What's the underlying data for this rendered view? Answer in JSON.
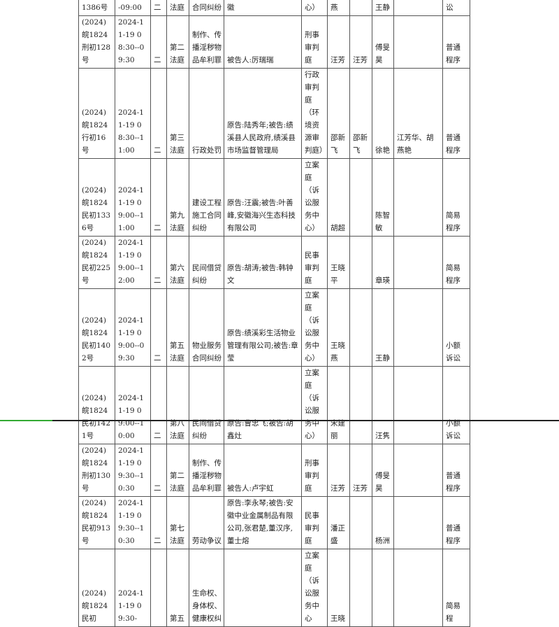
{
  "rows": [
    {
      "case": "1386号",
      "time": "-09:00",
      "day": "二",
      "room": "法庭",
      "cause": "合同纠纷",
      "parties": "工程有限公司;被告:周徽",
      "dept": "心）",
      "judge": "燕",
      "judge2": "",
      "clerk": "王静",
      "jurors": "",
      "procedure": "讼"
    },
    {
      "case": "(2024)皖1824刑初128号",
      "time": "2024-11-19 08:30--09:30",
      "day": "二",
      "room": "第二法庭",
      "cause": "制作、传播淫秽物品牟利罪",
      "parties": "被告人:厉瑞瑞",
      "dept": "刑事审判庭",
      "judge": "汪芳",
      "judge2": "汪芳",
      "clerk": "傅旻昊",
      "jurors": "",
      "procedure": "普通程序"
    },
    {
      "case": "(2024)皖1824行初16号",
      "time": "2024-11-19 08:30--11:00",
      "day": "二",
      "room": "第三法庭",
      "cause": "行政处罚",
      "parties": "原告:陆秀年;被告:绩溪县人民政府,绩溪县市场监督管理局",
      "dept": "行政审判庭（环境资源审判庭）",
      "judge": "邵新飞",
      "judge2": "邵新飞",
      "clerk": "徐艳",
      "jurors": "江芳华、胡燕艳",
      "procedure": "普通程序"
    },
    {
      "case": "(2024)皖1824民初1336号",
      "time": "2024-11-19 09:00--11:00",
      "day": "二",
      "room": "第九法庭",
      "cause": "建设工程施工合同纠纷",
      "parties": "原告:汪震;被告:叶善峰,安徽海兴生态科技有限公司",
      "dept": "立案庭（诉讼服务中心）",
      "judge": "胡超",
      "judge2": "",
      "clerk": "陈智敏",
      "jurors": "",
      "procedure": "简易程序"
    },
    {
      "case": "(2024)皖1824民初225号",
      "time": "2024-11-19 09:00--12:00",
      "day": "二",
      "room": "第六法庭",
      "cause": "民间借贷纠纷",
      "parties": "原告:胡涛;被告:韩钟文",
      "dept": "民事审判庭",
      "judge": "王晓平",
      "judge2": "",
      "clerk": "章瑛",
      "jurors": "",
      "procedure": "简易程序"
    },
    {
      "case": "(2024)皖1824民初1402号",
      "time": "2024-11-19 09:00--09:30",
      "day": "二",
      "room": "第五法庭",
      "cause": "物业服务合同纠纷",
      "parties": "原告:绩溪彩生活物业管理有限公司;被告:章莹",
      "dept": "立案庭（诉讼服务中心）",
      "judge": "王晓燕",
      "judge2": "",
      "clerk": "王静",
      "jurors": "",
      "procedure": "小额诉讼"
    },
    {
      "case": "(2024)皖1824民初1421号",
      "time": "2024-11-19 09:00--10:00",
      "day": "二",
      "room": "第八法庭",
      "cause": "民间借贷纠纷",
      "parties": "原告:曹忠飞;被告:胡鑫灶",
      "dept": "立案庭（诉讼服务中心）",
      "judge": "宋建丽",
      "judge2": "",
      "clerk": "汪隽",
      "jurors": "",
      "procedure": "小额诉讼"
    },
    {
      "case": "(2024)皖1824刑初130号",
      "time": "2024-11-19 09:30--10:30",
      "day": "二",
      "room": "第二法庭",
      "cause": "制作、传播淫秽物品牟利罪",
      "parties": "被告人:卢宇虹",
      "dept": "刑事审判庭",
      "judge": "汪芳",
      "judge2": "汪芳",
      "clerk": "傅旻昊",
      "jurors": "",
      "procedure": "普通程序"
    },
    {
      "case": "(2024)皖1824民初913号",
      "time": "2024-11-19 09:30--10:30",
      "day": "二",
      "room": "第七法庭",
      "cause": "劳动争议",
      "parties": "原告:李永琴;被告:安徽中业金属制品有限公司,张君楚,董汉序,董士熔",
      "dept": "民事审判庭",
      "judge": "潘正盛",
      "judge2": "",
      "clerk": "杨洲",
      "jurors": "",
      "procedure": "普通程序"
    },
    {
      "case": "(2024)皖1824民初",
      "time": "2024-11-19 09:30-",
      "day": "",
      "room": "第五",
      "cause": "生命权、身体权、健康权纠",
      "parties": "",
      "dept": "立案庭（诉讼服务中心",
      "judge": "王晓",
      "judge2": "",
      "clerk": "",
      "jurors": "",
      "procedure": "简易程"
    }
  ]
}
